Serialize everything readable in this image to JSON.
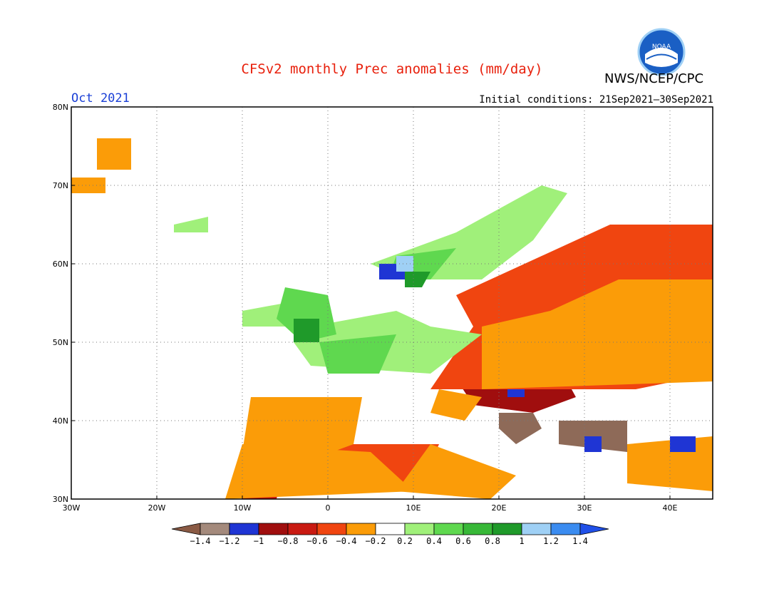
{
  "header": {
    "title": "CFSv2 monthly Prec anomalies (mm/day)",
    "org": "NWS/NCEP/CPC",
    "logo_text": "NOAA",
    "month": "Oct 2021",
    "initial_conditions": "Initial conditions: 21Sep2021–30Sep2021"
  },
  "map": {
    "lon_range": [
      -30,
      45
    ],
    "lat_range": [
      30,
      80
    ],
    "lon_ticks": [
      {
        "value": -30,
        "label": "30W"
      },
      {
        "value": -20,
        "label": "20W"
      },
      {
        "value": -10,
        "label": "10W"
      },
      {
        "value": 0,
        "label": "0"
      },
      {
        "value": 10,
        "label": "10E"
      },
      {
        "value": 20,
        "label": "20E"
      },
      {
        "value": 30,
        "label": "30E"
      },
      {
        "value": 40,
        "label": "40E"
      }
    ],
    "lat_ticks": [
      {
        "value": 30,
        "label": "30N"
      },
      {
        "value": 40,
        "label": "40N"
      },
      {
        "value": 50,
        "label": "50N"
      },
      {
        "value": 60,
        "label": "60N"
      },
      {
        "value": 70,
        "label": "70N"
      },
      {
        "value": 80,
        "label": "80N"
      }
    ],
    "anomaly_regions": [
      {
        "category": "brown",
        "polygons": [
          [
            [
              20,
              41
            ],
            [
              24,
              41
            ],
            [
              25,
              39
            ],
            [
              22,
              37
            ],
            [
              20,
              39
            ]
          ],
          [
            [
              27,
              40
            ],
            [
              35,
              40
            ],
            [
              35,
              36
            ],
            [
              27,
              37
            ]
          ]
        ]
      },
      {
        "category": "dred",
        "polygons": [
          [
            [
              27,
              55
            ],
            [
              45,
              58
            ],
            [
              45,
              53
            ],
            [
              38,
              51
            ],
            [
              30,
              47
            ],
            [
              25,
              49
            ]
          ],
          [
            [
              14,
              47
            ],
            [
              27,
              47
            ],
            [
              29,
              43
            ],
            [
              24,
              41
            ],
            [
              17,
              42
            ]
          ],
          [
            [
              -7,
              38
            ],
            [
              -3,
              36
            ],
            [
              -6,
              34
            ],
            [
              -8,
              36
            ]
          ]
        ]
      },
      {
        "category": "red",
        "polygons": [
          [
            [
              20,
              55
            ],
            [
              35,
              61
            ],
            [
              45,
              60
            ],
            [
              45,
              49
            ],
            [
              35,
              46
            ],
            [
              25,
              44
            ],
            [
              14,
              45
            ],
            [
              18,
              52
            ]
          ],
          [
            [
              -2,
              36
            ],
            [
              12,
              37
            ],
            [
              10,
              33
            ],
            [
              0,
              34
            ]
          ],
          [
            [
              -9,
              34
            ],
            [
              -5,
              35
            ],
            [
              -6,
              30
            ],
            [
              -10,
              30
            ]
          ]
        ]
      },
      {
        "category": "orred",
        "polygons": [
          [
            [
              15,
              56
            ],
            [
              25,
              61
            ],
            [
              33,
              65
            ],
            [
              45,
              65
            ],
            [
              45,
              46
            ],
            [
              36,
              44
            ],
            [
              25,
              44
            ],
            [
              12,
              44
            ],
            [
              17,
              52
            ]
          ],
          [
            [
              -4,
              42
            ],
            [
              3,
              42
            ],
            [
              1,
              38
            ],
            [
              -4,
              37
            ]
          ],
          [
            [
              -2,
              37
            ],
            [
              13,
              37
            ],
            [
              11,
              32
            ],
            [
              -1,
              33
            ]
          ]
        ]
      },
      {
        "category": "orange",
        "polygons": [
          [
            [
              -27,
              76
            ],
            [
              -23,
              76
            ],
            [
              -23,
              72
            ],
            [
              -27,
              72
            ]
          ],
          [
            [
              -30,
              71
            ],
            [
              -26,
              71
            ],
            [
              -26,
              69
            ],
            [
              -30,
              69
            ]
          ],
          [
            [
              -9,
              43
            ],
            [
              4,
              43
            ],
            [
              3,
              37
            ],
            [
              -2,
              35
            ],
            [
              -10,
              36
            ]
          ],
          [
            [
              -10,
              37
            ],
            [
              5,
              36
            ],
            [
              10,
              31
            ],
            [
              -12,
              30
            ]
          ],
          [
            [
              12,
              37
            ],
            [
              22,
              33
            ],
            [
              19,
              30
            ],
            [
              8,
              31
            ]
          ],
          [
            [
              35,
              37
            ],
            [
              45,
              38
            ],
            [
              45,
              31
            ],
            [
              35,
              32
            ]
          ],
          [
            [
              13,
              44
            ],
            [
              18,
              43
            ],
            [
              16,
              40
            ],
            [
              12,
              41
            ]
          ],
          [
            [
              18,
              44
            ],
            [
              45,
              45
            ],
            [
              45,
              58
            ],
            [
              34,
              58
            ],
            [
              26,
              54
            ],
            [
              18,
              52
            ]
          ]
        ]
      },
      {
        "category": "lgreen",
        "polygons": [
          [
            [
              5,
              60
            ],
            [
              15,
              64
            ],
            [
              20,
              67
            ],
            [
              25,
              70
            ],
            [
              28,
              69
            ],
            [
              24,
              63
            ],
            [
              18,
              58
            ],
            [
              12,
              58
            ],
            [
              7,
              59
            ]
          ],
          [
            [
              -2,
              52
            ],
            [
              8,
              54
            ],
            [
              12,
              52
            ],
            [
              18,
              51
            ],
            [
              12,
              46
            ],
            [
              -2,
              47
            ],
            [
              -4,
              50
            ]
          ],
          [
            [
              -10,
              54
            ],
            [
              -5,
              55
            ],
            [
              -5,
              52
            ],
            [
              -10,
              52
            ]
          ],
          [
            [
              -18,
              65
            ],
            [
              -14,
              66
            ],
            [
              -14,
              64
            ],
            [
              -18,
              64
            ]
          ]
        ]
      },
      {
        "category": "mgreen",
        "polygons": [
          [
            [
              -5,
              57
            ],
            [
              0,
              56
            ],
            [
              1,
              51
            ],
            [
              -3,
              50
            ],
            [
              -6,
              53
            ]
          ],
          [
            [
              -1,
              50
            ],
            [
              8,
              51
            ],
            [
              6,
              46
            ],
            [
              0,
              46
            ]
          ],
          [
            [
              8,
              61
            ],
            [
              15,
              62
            ],
            [
              12,
              58
            ],
            [
              7,
              58
            ]
          ]
        ]
      },
      {
        "category": "dgreen",
        "polygons": [
          [
            [
              -4,
              53
            ],
            [
              -1,
              53
            ],
            [
              -1,
              50
            ],
            [
              -4,
              50
            ]
          ],
          [
            [
              9,
              59
            ],
            [
              12,
              59
            ],
            [
              11,
              57
            ],
            [
              9,
              57
            ]
          ]
        ]
      },
      {
        "category": "blue",
        "polygons": [
          [
            [
              6,
              60
            ],
            [
              9,
              60
            ],
            [
              9,
              58
            ],
            [
              6,
              58
            ]
          ],
          [
            [
              21,
              44
            ],
            [
              23,
              44
            ],
            [
              23,
              43
            ],
            [
              21,
              43
            ]
          ],
          [
            [
              30,
              38
            ],
            [
              32,
              38
            ],
            [
              32,
              36
            ],
            [
              30,
              36
            ]
          ],
          [
            [
              40,
              38
            ],
            [
              43,
              38
            ],
            [
              43,
              36
            ],
            [
              40,
              36
            ]
          ]
        ]
      },
      {
        "category": "lblue",
        "polygons": [
          [
            [
              8,
              61
            ],
            [
              10,
              61
            ],
            [
              10,
              59
            ],
            [
              8,
              59
            ]
          ]
        ]
      }
    ],
    "coastlines_note": ""
  },
  "colorbar": {
    "labels": [
      "−1.4",
      "−1.2",
      "−1",
      "−0.8",
      "−0.6",
      "−0.4",
      "−0.2",
      "0.2",
      "0.4",
      "0.6",
      "0.8",
      "1",
      "1.2",
      "1.4"
    ],
    "colors": [
      "#8a5a44",
      "#a48a7c",
      "#1f35d4",
      "#a00e0e",
      "#c91a12",
      "#f04510",
      "#fb9c08",
      "#ffffff",
      "#a0f07a",
      "#5fd84f",
      "#38b838",
      "#1f9a2a",
      "#9fd0f5",
      "#3b8cf0",
      "#2050e8"
    ]
  },
  "legend_colors": {
    "brown": "#8e6a58",
    "dred": "#a00e0e",
    "red": "#c91a12",
    "orred": "#f04510",
    "orange": "#fb9c08",
    "lgreen": "#a0f07a",
    "mgreen": "#5fd84f",
    "dgreen": "#1f9a2a",
    "blue": "#1f35d4",
    "lblue": "#9fd0f5"
  }
}
